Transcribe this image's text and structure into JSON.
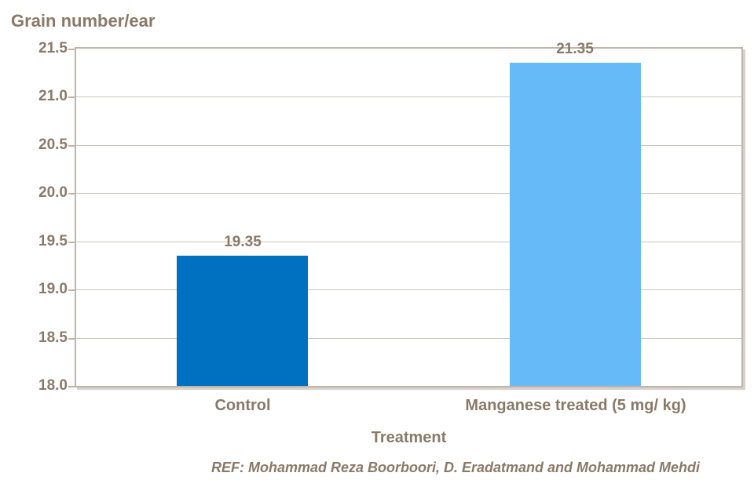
{
  "chart_data": {
    "type": "bar",
    "title": "Grain number/ear",
    "xlabel": "Treatment",
    "ylabel": "",
    "categories": [
      "Control",
      "Manganese treated (5 mg/ kg)"
    ],
    "values": [
      19.35,
      21.35
    ],
    "value_labels": [
      "19.35",
      "21.35"
    ],
    "series": [
      {
        "name": "Grain number/ear",
        "values": [
          19.35,
          21.35
        ]
      }
    ],
    "bar_colors": [
      "#0070C0",
      "#66BAF7"
    ],
    "ylim": [
      18.0,
      21.5
    ],
    "ytick_step": 0.5,
    "yticks": [
      "21.5",
      "21.0",
      "20.5",
      "20.0",
      "19.5",
      "19.0",
      "18.5",
      "18.0"
    ],
    "grid": true,
    "legend": false
  },
  "footer": {
    "ref_text": "REF: Mohammad Reza Boorboori, D. Eradatmand and Mohammad Mehdi"
  },
  "colors": {
    "text_brown": "#8A7967",
    "gridline": "#CDC5BA",
    "plot_border": "#BEB4A8",
    "bar_control": "#0070C0",
    "bar_treated": "#66BAF7",
    "background": "#FFFFFF"
  }
}
